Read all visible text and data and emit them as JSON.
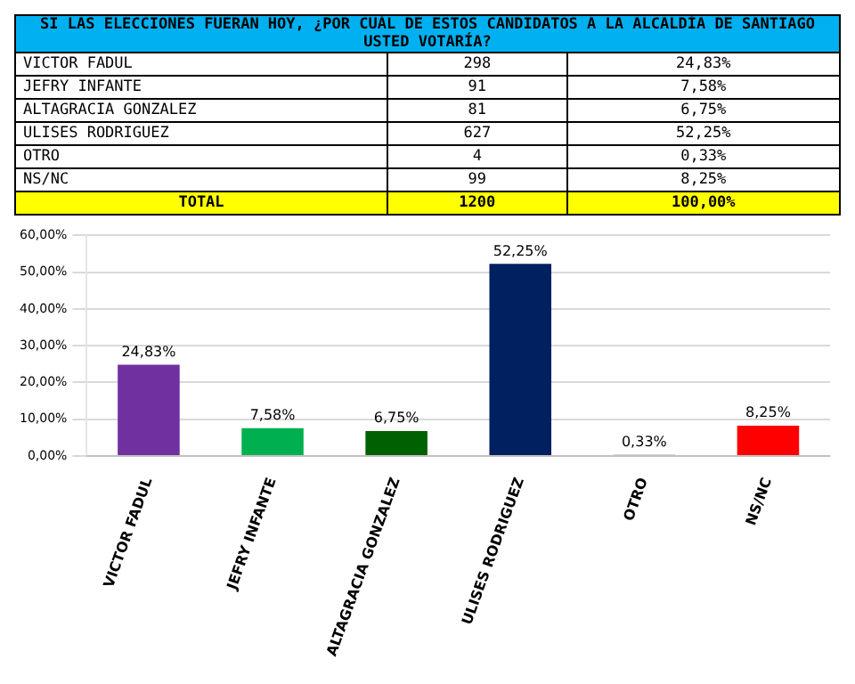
{
  "chart_data": [
    {
      "type": "other",
      "title": "SI LAS ELECCIONES FUERAN HOY, ¿POR CUÁL DE ESTOS CANDIDATOS A LA ALCALDÍA DE SANTIAGO USTED VOTARÍA?",
      "categories": [
        "VICTOR FADUL",
        "JEFRY INFANTE",
        "ALTAGRACIA GONZALEZ",
        "ULISES RODRIGUEZ",
        "OTRO",
        "NS/NC"
      ],
      "data_labels": true,
      "series": [
        {
          "values": [
            298,
            91,
            81,
            627,
            4,
            99
          ]
        },
        {
          "values": [
            24.83,
            7.58,
            6.75,
            52.25,
            0.33,
            8.25
          ],
          "value_labels": [
            "24,83%",
            "7,58%",
            "6,75%",
            "52,25%",
            "0,33%",
            "8,25%"
          ]
        }
      ],
      "annotations": [
        "TOTAL",
        "1200",
        "100,00%"
      ]
    },
    {
      "type": "bar",
      "categories": [
        "VICTOR FADUL",
        "JEFRY INFANTE",
        "ALTAGRACIA GONZALEZ",
        "ULISES RODRIGUEZ",
        "OTRO",
        "NS/NC"
      ],
      "values": [
        24.83,
        7.58,
        6.75,
        52.25,
        0.33,
        8.25
      ],
      "colors": [
        "#7030a0",
        "#00b050",
        "#006100",
        "#002060",
        "#a6a6a6",
        "#ff0000"
      ],
      "value_labels": [
        "24,83%",
        "7,58%",
        "6,75%",
        "52,25%",
        "0,33%",
        "8,25%"
      ],
      "ylim": [
        0,
        60
      ],
      "yticks": [
        {
          "value": 0,
          "label": "0,00%"
        },
        {
          "value": 10,
          "label": "10,00%"
        },
        {
          "value": 20,
          "label": "20,00%"
        },
        {
          "value": 30,
          "label": "30,00%"
        },
        {
          "value": 40,
          "label": "40,00%"
        },
        {
          "value": 50,
          "label": "50,00%"
        },
        {
          "value": 60,
          "label": "60,00%"
        }
      ],
      "grid": "y",
      "legend": false
    }
  ]
}
